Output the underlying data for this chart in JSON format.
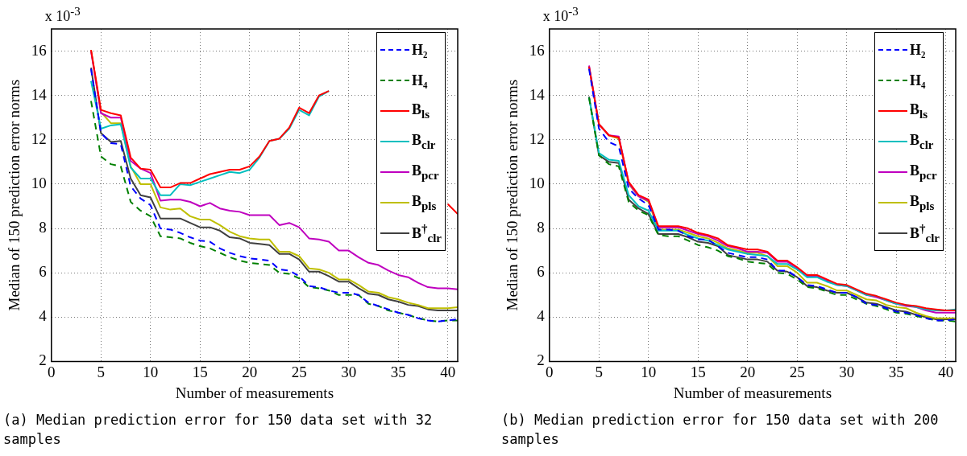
{
  "chart_data": [
    {
      "type": "line",
      "xlabel": "Number of measurements",
      "ylabel": "Median of 150 prediction error norms",
      "annotations": [
        "x 10$^{-3}$",
        "(a) Median prediction error for 150 data set with 32 samples"
      ],
      "x": [
        4,
        5,
        6,
        7,
        8,
        9,
        10,
        11,
        12,
        13,
        14,
        15,
        16,
        17,
        18,
        19,
        20,
        21,
        22,
        23,
        24,
        25,
        26,
        27,
        28,
        29,
        30,
        31,
        32,
        33,
        34,
        35,
        36,
        37,
        38,
        39,
        40,
        41
      ],
      "xlim": [
        0,
        41
      ],
      "xticks": [
        0,
        5,
        10,
        15,
        20,
        25,
        30,
        35,
        40
      ],
      "ylim": [
        2,
        17
      ],
      "yticks": [
        2,
        4,
        6,
        8,
        10,
        12,
        14,
        16
      ],
      "grid": true,
      "legend": "top right",
      "marker": "none",
      "series": [
        {
          "name": "H₂",
          "color": "#0000ff",
          "line_style": "dashed",
          "values": [
            15.2,
            12.3,
            11.85,
            11.8,
            9.9,
            9.35,
            9.05,
            8.0,
            7.95,
            7.8,
            7.6,
            7.45,
            7.4,
            7.1,
            6.9,
            6.75,
            6.65,
            6.6,
            6.55,
            6.15,
            6.1,
            5.85,
            5.4,
            5.35,
            5.2,
            5.1,
            5.1,
            5.0,
            4.65,
            4.5,
            4.35,
            4.2,
            4.1,
            3.95,
            3.85,
            3.8,
            3.85,
            3.9
          ]
        },
        {
          "name": "H₄",
          "color": "#008000",
          "line_style": "dashed",
          "values": [
            13.75,
            11.25,
            10.9,
            10.8,
            9.2,
            8.8,
            8.55,
            7.65,
            7.6,
            7.55,
            7.35,
            7.2,
            7.1,
            6.9,
            6.7,
            6.55,
            6.45,
            6.4,
            6.35,
            6.0,
            5.95,
            5.75,
            5.35,
            5.3,
            5.2,
            5.0,
            5.0,
            5.0,
            4.6,
            4.5,
            4.3,
            4.2,
            4.1,
            3.95,
            3.85,
            3.8,
            3.85,
            3.85
          ]
        },
        {
          "name": "B$_{ls}$",
          "color": "#ff0000",
          "line_style": "solid",
          "values": [
            16.05,
            13.35,
            13.2,
            13.1,
            11.2,
            10.7,
            10.65,
            9.85,
            9.85,
            10.05,
            10.05,
            10.25,
            10.45,
            10.55,
            10.65,
            10.65,
            10.8,
            11.25,
            11.95,
            12.05,
            12.55,
            13.45,
            13.2,
            14.0,
            14.2,
            null,
            null,
            null,
            null,
            null,
            null,
            null,
            null,
            null,
            null,
            null,
            9.1,
            8.65
          ]
        },
        {
          "name": "B$_{clr}$",
          "color": "#00bfbf",
          "line_style": "solid",
          "values": [
            14.65,
            12.5,
            12.65,
            12.7,
            10.75,
            10.25,
            10.25,
            9.5,
            9.5,
            10.0,
            9.95,
            10.1,
            10.25,
            10.4,
            10.55,
            10.5,
            10.65,
            11.2,
            11.95,
            12.05,
            12.5,
            13.35,
            13.1,
            13.95,
            14.2,
            null,
            null,
            null,
            null,
            null,
            null,
            null,
            null,
            null,
            null,
            null,
            null,
            null
          ]
        },
        {
          "name": "B$_{pcr}$",
          "color": "#bf00bf",
          "line_style": "solid",
          "values": [
            16.0,
            13.2,
            13.0,
            13.0,
            11.05,
            10.7,
            10.5,
            9.25,
            9.3,
            9.3,
            9.2,
            9.0,
            9.15,
            8.9,
            8.8,
            8.75,
            8.6,
            8.6,
            8.6,
            8.15,
            8.25,
            8.05,
            7.55,
            7.5,
            7.4,
            7.0,
            7.0,
            6.7,
            6.45,
            6.35,
            6.1,
            5.9,
            5.8,
            5.55,
            5.35,
            5.3,
            5.3,
            5.25
          ]
        },
        {
          "name": "B$_{pls}$",
          "color": "#bfbf00",
          "line_style": "solid",
          "values": [
            16.05,
            13.25,
            12.75,
            12.75,
            10.8,
            10.0,
            10.0,
            8.95,
            8.85,
            8.9,
            8.55,
            8.4,
            8.4,
            8.15,
            7.85,
            7.65,
            7.55,
            7.5,
            7.5,
            6.95,
            6.95,
            6.75,
            6.2,
            6.15,
            6.0,
            5.7,
            5.7,
            5.45,
            5.15,
            5.1,
            4.9,
            4.8,
            4.65,
            4.55,
            4.4,
            4.4,
            4.4,
            4.45
          ]
        },
        {
          "name": "B$^{†}$$_{clr}$",
          "color": "#404040",
          "line_style": "solid",
          "values": [
            15.25,
            12.3,
            11.9,
            11.95,
            10.25,
            9.5,
            9.4,
            8.45,
            8.45,
            8.45,
            8.25,
            8.05,
            8.05,
            7.9,
            7.6,
            7.55,
            7.35,
            7.3,
            7.25,
            6.85,
            6.85,
            6.6,
            6.05,
            6.05,
            5.85,
            5.6,
            5.6,
            5.3,
            5.05,
            5.0,
            4.8,
            4.7,
            4.55,
            4.5,
            4.35,
            4.3,
            4.3,
            4.3
          ]
        }
      ]
    },
    {
      "type": "line",
      "xlabel": "Number of measurements",
      "ylabel": "Median of 150 prediction error norms",
      "annotations": [
        "x 10$^{-3}$",
        "(b) Median prediction error for 150 data set with 200 samples"
      ],
      "x": [
        4,
        5,
        6,
        7,
        8,
        9,
        10,
        11,
        12,
        13,
        14,
        15,
        16,
        17,
        18,
        19,
        20,
        21,
        22,
        23,
        24,
        25,
        26,
        27,
        28,
        29,
        30,
        31,
        32,
        33,
        34,
        35,
        36,
        37,
        38,
        39,
        40,
        41
      ],
      "xlim": [
        0,
        41
      ],
      "xticks": [
        0,
        5,
        10,
        15,
        20,
        25,
        30,
        35,
        40
      ],
      "ylim": [
        2,
        17
      ],
      "yticks": [
        2,
        4,
        6,
        8,
        10,
        12,
        14,
        16
      ],
      "grid": true,
      "legend": "top right",
      "marker": "none",
      "series": [
        {
          "name": "H₂",
          "color": "#0000ff",
          "line_style": "dashed",
          "values": [
            15.2,
            12.5,
            11.9,
            11.7,
            9.8,
            9.35,
            9.05,
            7.95,
            7.95,
            7.9,
            7.65,
            7.5,
            7.5,
            7.2,
            6.9,
            6.8,
            6.7,
            6.7,
            6.6,
            6.1,
            6.1,
            5.8,
            5.45,
            5.4,
            5.25,
            5.1,
            5.1,
            4.9,
            4.6,
            4.55,
            4.4,
            4.25,
            4.2,
            4.1,
            3.95,
            3.85,
            3.85,
            3.9
          ]
        },
        {
          "name": "H₄",
          "color": "#008000",
          "line_style": "dashed",
          "values": [
            13.9,
            11.3,
            10.9,
            10.8,
            9.2,
            8.8,
            8.6,
            7.7,
            7.65,
            7.65,
            7.45,
            7.25,
            7.15,
            7.0,
            6.75,
            6.65,
            6.5,
            6.45,
            6.4,
            6.0,
            5.95,
            5.7,
            5.35,
            5.3,
            5.15,
            5.0,
            5.0,
            4.8,
            4.6,
            4.5,
            4.35,
            4.2,
            4.15,
            4.05,
            3.95,
            3.85,
            3.85,
            3.8
          ]
        },
        {
          "name": "B$_{ls}$",
          "color": "#ff0000",
          "line_style": "solid",
          "values": [
            15.3,
            12.7,
            12.2,
            12.1,
            10.1,
            9.5,
            9.3,
            8.1,
            8.1,
            8.1,
            8.0,
            7.8,
            7.7,
            7.55,
            7.25,
            7.15,
            7.05,
            7.05,
            6.95,
            6.55,
            6.55,
            6.25,
            5.9,
            5.9,
            5.7,
            5.5,
            5.45,
            5.25,
            5.05,
            4.95,
            4.8,
            4.65,
            4.55,
            4.5,
            4.4,
            4.35,
            4.3,
            4.3
          ]
        },
        {
          "name": "B$_{clr}$",
          "color": "#00bfbf",
          "line_style": "solid",
          "values": [
            13.9,
            11.4,
            11.1,
            11.05,
            9.5,
            9.0,
            8.8,
            7.9,
            7.9,
            7.9,
            7.7,
            7.55,
            7.45,
            7.25,
            7.05,
            6.95,
            6.85,
            6.8,
            6.75,
            6.4,
            6.4,
            6.15,
            5.8,
            5.8,
            5.6,
            5.45,
            5.4,
            5.2,
            5.0,
            4.95,
            4.75,
            4.6,
            4.55,
            4.45,
            4.35,
            4.3,
            4.3,
            4.35
          ]
        },
        {
          "name": "B$_{pcr}$",
          "color": "#bf00bf",
          "line_style": "solid",
          "values": [
            15.35,
            12.7,
            12.2,
            12.15,
            10.05,
            9.45,
            9.25,
            8.05,
            8.05,
            8.05,
            7.9,
            7.75,
            7.65,
            7.45,
            7.2,
            7.1,
            6.95,
            6.95,
            6.9,
            6.5,
            6.5,
            6.2,
            5.85,
            5.85,
            5.65,
            5.45,
            5.4,
            5.2,
            5.0,
            4.9,
            4.75,
            4.6,
            4.5,
            4.45,
            4.3,
            4.2,
            4.2,
            4.2
          ]
        },
        {
          "name": "B$_{pls}$",
          "color": "#bfbf00",
          "line_style": "solid",
          "values": [
            15.3,
            12.7,
            12.2,
            12.05,
            10.0,
            9.45,
            9.2,
            7.95,
            7.95,
            7.95,
            7.8,
            7.65,
            7.55,
            7.35,
            7.1,
            7.0,
            6.9,
            6.9,
            6.75,
            6.3,
            6.3,
            6.0,
            5.55,
            5.55,
            5.4,
            5.2,
            5.2,
            5.0,
            4.8,
            4.75,
            4.55,
            4.45,
            4.4,
            4.2,
            4.05,
            3.95,
            3.95,
            3.95
          ]
        },
        {
          "name": "B$^{†}$$_{clr}$",
          "color": "#404040",
          "line_style": "solid",
          "values": [
            13.95,
            11.3,
            11.0,
            10.95,
            9.3,
            8.9,
            8.65,
            7.75,
            7.75,
            7.75,
            7.6,
            7.4,
            7.35,
            7.2,
            6.8,
            6.7,
            6.6,
            6.6,
            6.5,
            6.1,
            6.05,
            5.8,
            5.4,
            5.35,
            5.2,
            5.1,
            5.1,
            4.9,
            4.65,
            4.6,
            4.45,
            4.3,
            4.25,
            4.1,
            4.0,
            3.9,
            3.9,
            3.9
          ]
        }
      ]
    }
  ]
}
